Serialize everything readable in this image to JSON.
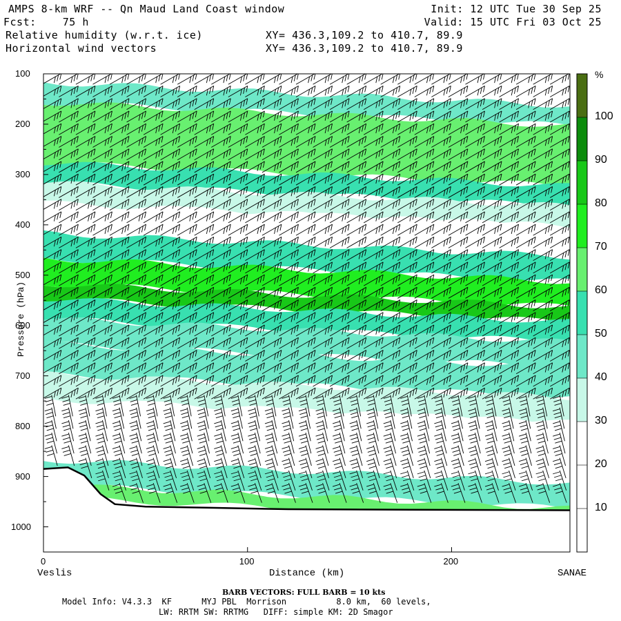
{
  "header": {
    "line1_left": "AMPS 8-km WRF -- Qn Maud Land Coast window",
    "line1_right": "Init: 12 UTC Tue 30 Sep 25",
    "line2_left": "Fcst:    75 h",
    "line2_right": "Valid: 15 UTC Fri 03 Oct 25",
    "line3_left": "Relative humidity (w.r.t. ice)",
    "line3_xy": "XY= 436.3,109.2 to 410.7, 89.9",
    "line4_left": "Horizontal wind vectors",
    "line4_xy": "XY= 436.3,109.2 to 410.7, 89.9"
  },
  "chart_data": {
    "type": "heatmap",
    "title": "Relative humidity (w.r.t. ice)",
    "subtitle": "Horizontal wind vectors",
    "xlabel": "Distance (km)",
    "ylabel": "Pressure (hPa)",
    "xlim": [
      0,
      258
    ],
    "ylim": [
      1050,
      100
    ],
    "x_ticks": [
      0,
      100,
      200
    ],
    "y_ticks": [
      100,
      200,
      300,
      400,
      500,
      600,
      700,
      800,
      900,
      1000
    ],
    "x_endpoints": {
      "left": "Veslis",
      "right": "SANAE"
    },
    "colorbar": {
      "unit": "%",
      "levels": [
        10,
        20,
        30,
        40,
        50,
        60,
        70,
        80,
        90,
        100
      ],
      "colors": [
        "#ffffff",
        "#ffffff",
        "#ffffff",
        "#c8f8e8",
        "#6ee8c8",
        "#38e0b0",
        "#68f070",
        "#20ee20",
        "#18c818",
        "#0c8c0c",
        "#4a6e12"
      ]
    },
    "rh_bands": [
      {
        "p_top": 140,
        "p_bot": 180,
        "rh": 40
      },
      {
        "p_top": 180,
        "p_bot": 300,
        "rh": 65
      },
      {
        "p_top": 300,
        "p_bot": 340,
        "rh": 50
      },
      {
        "p_top": 340,
        "p_bot": 380,
        "rh": 35
      },
      {
        "p_top": 380,
        "p_bot": 440,
        "rh": 20
      },
      {
        "p_top": 440,
        "p_bot": 490,
        "rh": 50
      },
      {
        "p_top": 490,
        "p_bot": 540,
        "rh": 75
      },
      {
        "p_top": 540,
        "p_bot": 570,
        "rh": 85
      },
      {
        "p_top": 570,
        "p_bot": 610,
        "rh": 55
      },
      {
        "p_top": 610,
        "p_bot": 660,
        "rh": 40
      },
      {
        "p_top": 660,
        "p_bot": 720,
        "rh": 45
      },
      {
        "p_top": 720,
        "p_bot": 770,
        "rh": 30
      },
      {
        "p_top": 770,
        "p_bot": 890,
        "rh": 20
      },
      {
        "p_top": 890,
        "p_bot": 940,
        "rh": 45
      },
      {
        "p_top": 940,
        "p_bot": 965,
        "rh": 65
      }
    ],
    "terrain_surface_hpa": [
      [
        0,
        885
      ],
      [
        12,
        882
      ],
      [
        20,
        898
      ],
      [
        28,
        935
      ],
      [
        35,
        955
      ],
      [
        50,
        960
      ],
      [
        80,
        962
      ],
      [
        120,
        965
      ],
      [
        180,
        966
      ],
      [
        258,
        967
      ]
    ],
    "wind_barb_note": "BARB VECTORS:  FULL BARB = 10 kts",
    "grid": false,
    "legend": "colorbar-right"
  },
  "footer": {
    "model_info_line1": "Model Info: V4.3.3  KF      MYJ PBL  Morrison          8.0 km,  60 levels,",
    "model_info_line2": "LW: RRTM SW: RRTMG   DIFF: simple KM: 2D Smagor"
  }
}
